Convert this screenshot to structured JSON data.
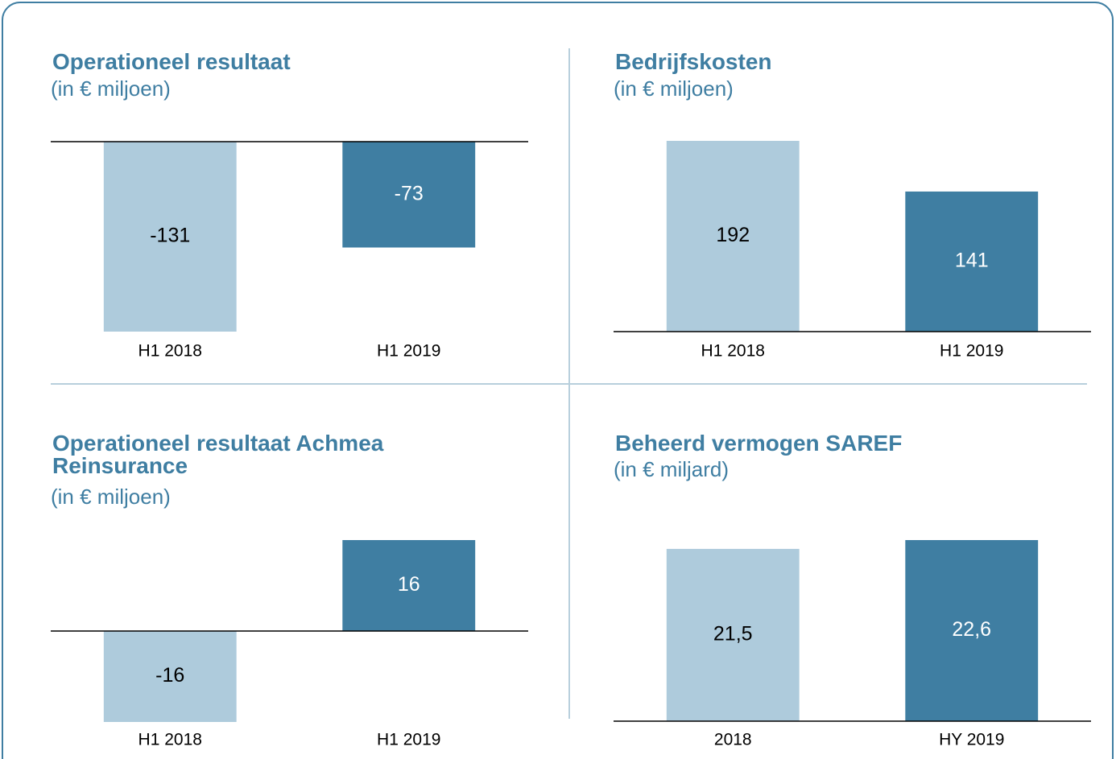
{
  "chart_data": [
    {
      "type": "bar",
      "title": "Operationeel resultaat",
      "subtitle": "(in € miljoen)",
      "categories": [
        "H1 2018",
        "H1 2019"
      ],
      "values": [
        -131,
        -73
      ],
      "colors": [
        "#aecbdc",
        "#3f7ea2"
      ],
      "ylim": [
        -131,
        0
      ]
    },
    {
      "type": "bar",
      "title": "Bedrijfskosten",
      "subtitle": "(in € miljoen)",
      "categories": [
        "H1 2018",
        "H1 2019"
      ],
      "values": [
        192,
        141
      ],
      "colors": [
        "#aecbdc",
        "#3f7ea2"
      ],
      "ylim": [
        0,
        192
      ]
    },
    {
      "type": "bar",
      "title": "Operationeel resultaat Achmea Reinsurance",
      "subtitle": "(in € miljoen)",
      "categories": [
        "H1 2018",
        "H1 2019"
      ],
      "values": [
        -16,
        16
      ],
      "colors": [
        "#aecbdc",
        "#3f7ea2"
      ],
      "ylim": [
        -16,
        16
      ]
    },
    {
      "type": "bar",
      "title": "Beheerd vermogen SAREF",
      "subtitle": "(in € miljard)",
      "categories": [
        "2018",
        "HY 2019"
      ],
      "values": [
        21.5,
        22.6
      ],
      "value_labels": [
        "21,5",
        "22,6"
      ],
      "colors": [
        "#aecbdc",
        "#3f7ea2"
      ],
      "ylim": [
        0,
        22.6
      ]
    }
  ]
}
